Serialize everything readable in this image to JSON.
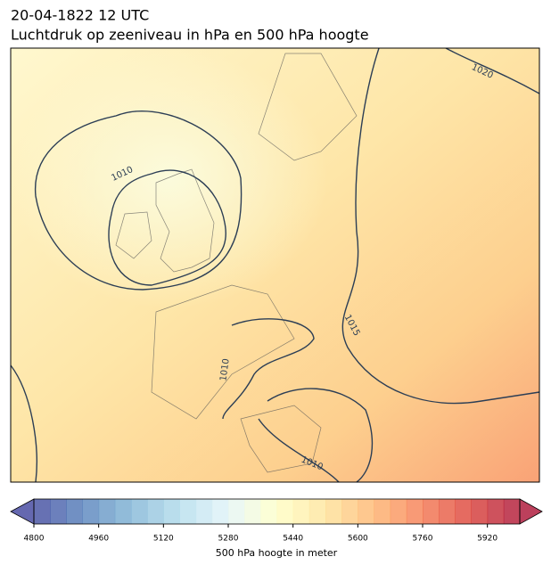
{
  "title": "20-04-1822 12 UTC",
  "subtitle": "Luchtdruk op zeeniveau in hPa en 500 hPa hoogte",
  "isobar_labels": [
    1020,
    1010,
    1015,
    1010,
    1010
  ],
  "colorbar": {
    "label": "500 hPa hoogte in meter",
    "lim": [
      4800,
      6000
    ],
    "step": 40,
    "ticks": [
      4800,
      4960,
      5120,
      5280,
      5440,
      5600,
      5760,
      5920
    ],
    "extend": "both"
  }
}
